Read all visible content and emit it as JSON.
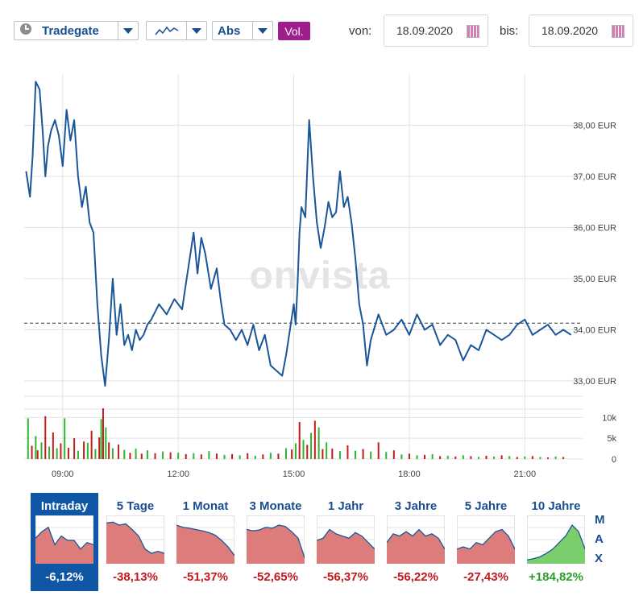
{
  "toolbar": {
    "exchange": "Tradegate",
    "mode": "Abs",
    "vol": "Vol.",
    "from_label": "von:",
    "from_date": "18.09.2020",
    "to_label": "bis:",
    "to_date": "18.09.2020"
  },
  "watermark": "onvista",
  "colors": {
    "line": "#1a5699",
    "up": "#2fb52f",
    "down": "#c71b1b",
    "active_tab": "#0f57a5",
    "vol_button": "#a01d8d"
  },
  "chart_data": [
    {
      "type": "line",
      "x_unit": "time",
      "ylim": [
        32.7,
        39.0
      ],
      "yticks": [
        "33,00 EUR",
        "34,00 EUR",
        "35,00 EUR",
        "36,00 EUR",
        "37,00 EUR",
        "38,00 EUR"
      ],
      "ytick_values": [
        33,
        34,
        35,
        36,
        37,
        38
      ],
      "xticks": [
        "09:00",
        "12:00",
        "15:00",
        "18:00",
        "21:00"
      ],
      "xtick_values": [
        9,
        12,
        15,
        18,
        21
      ],
      "reference_line": 34.13,
      "x": [
        8.05,
        8.15,
        8.22,
        8.3,
        8.4,
        8.48,
        8.55,
        8.62,
        8.7,
        8.8,
        8.9,
        9.0,
        9.1,
        9.2,
        9.3,
        9.4,
        9.5,
        9.6,
        9.7,
        9.8,
        9.9,
        10.0,
        10.1,
        10.2,
        10.3,
        10.4,
        10.5,
        10.6,
        10.7,
        10.8,
        10.9,
        11.0,
        11.1,
        11.2,
        11.3,
        11.5,
        11.7,
        11.9,
        12.1,
        12.2,
        12.3,
        12.4,
        12.5,
        12.6,
        12.7,
        12.85,
        13.0,
        13.1,
        13.2,
        13.35,
        13.5,
        13.65,
        13.8,
        13.95,
        14.1,
        14.25,
        14.4,
        14.55,
        14.7,
        14.8,
        14.9,
        15.0,
        15.05,
        15.1,
        15.15,
        15.2,
        15.3,
        15.4,
        15.5,
        15.6,
        15.7,
        15.8,
        15.9,
        16.0,
        16.1,
        16.2,
        16.3,
        16.4,
        16.5,
        16.6,
        16.7,
        16.8,
        16.9,
        17.0,
        17.2,
        17.4,
        17.6,
        17.8,
        18.0,
        18.2,
        18.4,
        18.6,
        18.8,
        19.0,
        19.2,
        19.4,
        19.6,
        19.8,
        20.0,
        20.2,
        20.4,
        20.6,
        20.8,
        21.0,
        21.2,
        21.4,
        21.6,
        21.8,
        22.0,
        22.2
      ],
      "y": [
        37.1,
        36.6,
        37.4,
        38.85,
        38.7,
        37.9,
        37.0,
        37.6,
        37.9,
        38.1,
        37.8,
        37.2,
        38.3,
        37.7,
        38.1,
        37.0,
        36.4,
        36.8,
        36.1,
        35.9,
        34.5,
        33.5,
        32.9,
        33.8,
        35.0,
        33.9,
        34.5,
        33.7,
        33.9,
        33.6,
        34.0,
        33.8,
        33.9,
        34.1,
        34.2,
        34.5,
        34.3,
        34.6,
        34.4,
        34.9,
        35.4,
        35.9,
        35.1,
        35.8,
        35.5,
        34.8,
        35.2,
        34.6,
        34.1,
        34.0,
        33.8,
        34.0,
        33.7,
        34.1,
        33.6,
        33.9,
        33.3,
        33.2,
        33.1,
        33.5,
        34.0,
        34.5,
        34.1,
        34.9,
        35.9,
        36.4,
        36.2,
        38.1,
        37.0,
        36.1,
        35.6,
        36.0,
        36.5,
        36.2,
        36.3,
        37.1,
        36.4,
        36.6,
        36.1,
        35.4,
        34.5,
        34.1,
        33.3,
        33.8,
        34.3,
        33.9,
        34.0,
        34.2,
        33.9,
        34.3,
        34.0,
        34.1,
        33.7,
        33.9,
        33.8,
        33.4,
        33.7,
        33.6,
        34.0,
        33.9,
        33.8,
        33.9,
        34.1,
        34.2,
        33.9,
        34.0,
        34.1,
        33.9,
        34.0,
        33.9
      ]
    },
    {
      "type": "bar",
      "yticks": [
        "10k",
        "5k",
        "0"
      ],
      "ytick_values": [
        10000,
        5000,
        0
      ],
      "ylim": [
        0,
        12000
      ],
      "x": [
        8.1,
        8.2,
        8.3,
        8.35,
        8.45,
        8.55,
        8.65,
        8.75,
        8.85,
        8.95,
        9.05,
        9.15,
        9.3,
        9.4,
        9.55,
        9.65,
        9.75,
        9.85,
        9.95,
        10.0,
        10.05,
        10.12,
        10.2,
        10.3,
        10.45,
        10.6,
        10.75,
        10.9,
        11.05,
        11.2,
        11.4,
        11.6,
        11.8,
        12.0,
        12.2,
        12.4,
        12.6,
        12.8,
        13.0,
        13.2,
        13.4,
        13.6,
        13.8,
        14.0,
        14.2,
        14.4,
        14.6,
        14.8,
        14.95,
        15.05,
        15.15,
        15.25,
        15.35,
        15.45,
        15.55,
        15.65,
        15.75,
        15.85,
        16.0,
        16.2,
        16.4,
        16.6,
        16.8,
        17.0,
        17.2,
        17.4,
        17.6,
        17.8,
        18.0,
        18.2,
        18.4,
        18.6,
        18.8,
        19.0,
        19.2,
        19.4,
        19.6,
        19.8,
        20.0,
        20.2,
        20.4,
        20.6,
        20.8,
        21.0,
        21.2,
        21.4,
        21.6,
        21.8,
        22.0
      ],
      "values": [
        9800,
        3200,
        5500,
        2100,
        4000,
        10300,
        3000,
        6400,
        2600,
        3800,
        9800,
        2700,
        5000,
        2000,
        4200,
        3900,
        6800,
        2400,
        5200,
        9600,
        12200,
        7600,
        4000,
        2600,
        3500,
        2200,
        1500,
        2500,
        1300,
        2100,
        1400,
        1800,
        1600,
        1500,
        1200,
        1400,
        1100,
        1900,
        1300,
        1000,
        1200,
        900,
        1400,
        800,
        1100,
        1500,
        1300,
        2600,
        2300,
        3800,
        8900,
        4600,
        3400,
        6300,
        9200,
        7600,
        2400,
        4000,
        2500,
        1900,
        3300,
        2000,
        2400,
        1800,
        4000,
        1700,
        2100,
        1100,
        1300,
        900,
        1000,
        1200,
        700,
        800,
        600,
        900,
        700,
        500,
        800,
        600,
        900,
        700,
        500,
        600,
        700,
        500,
        400,
        600,
        500
      ],
      "colors": [
        "up",
        "down",
        "up",
        "down",
        "up",
        "down",
        "up",
        "down",
        "up",
        "down",
        "up",
        "down",
        "down",
        "up",
        "down",
        "up",
        "down",
        "up",
        "down",
        "up",
        "down",
        "up",
        "down",
        "up",
        "down",
        "up",
        "down",
        "up",
        "down",
        "up",
        "down",
        "up",
        "down",
        "up",
        "down",
        "up",
        "down",
        "up",
        "down",
        "up",
        "down",
        "up",
        "down",
        "up",
        "down",
        "up",
        "down",
        "up",
        "down",
        "up",
        "down",
        "up",
        "down",
        "up",
        "down",
        "up",
        "down",
        "up",
        "down",
        "up",
        "down",
        "up",
        "down",
        "up",
        "down",
        "up",
        "down",
        "up",
        "down",
        "up",
        "down",
        "up",
        "down",
        "up",
        "down",
        "up",
        "down",
        "up",
        "down",
        "up",
        "down",
        "up",
        "down",
        "up",
        "down",
        "up",
        "down",
        "up",
        "down"
      ]
    }
  ],
  "periods": [
    {
      "label": "Intraday",
      "change": "-6,12%",
      "dir": "neg",
      "active": true,
      "shape": [
        0.55,
        0.7,
        0.8,
        0.4,
        0.6,
        0.5,
        0.5,
        0.3,
        0.45,
        0.4
      ]
    },
    {
      "label": "5 Tage",
      "change": "-38,13%",
      "dir": "neg",
      "active": false,
      "shape": [
        0.9,
        0.92,
        0.85,
        0.88,
        0.75,
        0.6,
        0.3,
        0.2,
        0.25,
        0.2
      ]
    },
    {
      "label": "1 Monat",
      "change": "-51,37%",
      "dir": "neg",
      "active": false,
      "shape": [
        0.85,
        0.8,
        0.78,
        0.75,
        0.72,
        0.68,
        0.62,
        0.5,
        0.35,
        0.15
      ]
    },
    {
      "label": "3 Monate",
      "change": "-52,65%",
      "dir": "neg",
      "active": false,
      "shape": [
        0.75,
        0.72,
        0.74,
        0.8,
        0.78,
        0.85,
        0.82,
        0.7,
        0.55,
        0.1
      ]
    },
    {
      "label": "1 Jahr",
      "change": "-56,37%",
      "dir": "neg",
      "active": false,
      "shape": [
        0.5,
        0.55,
        0.75,
        0.65,
        0.6,
        0.55,
        0.68,
        0.6,
        0.45,
        0.3
      ]
    },
    {
      "label": "3 Jahre",
      "change": "-56,22%",
      "dir": "neg",
      "active": false,
      "shape": [
        0.45,
        0.65,
        0.6,
        0.7,
        0.6,
        0.75,
        0.6,
        0.65,
        0.55,
        0.3
      ]
    },
    {
      "label": "5 Jahre",
      "change": "-27,43%",
      "dir": "neg",
      "active": false,
      "shape": [
        0.3,
        0.35,
        0.3,
        0.45,
        0.4,
        0.55,
        0.7,
        0.75,
        0.6,
        0.3
      ]
    },
    {
      "label": "10 Jahre",
      "change": "+184,82%",
      "dir": "pos",
      "active": false,
      "shape": [
        0.05,
        0.08,
        0.12,
        0.2,
        0.3,
        0.45,
        0.6,
        0.85,
        0.7,
        0.3
      ]
    }
  ],
  "max_letters": [
    "M",
    "A",
    "X"
  ]
}
